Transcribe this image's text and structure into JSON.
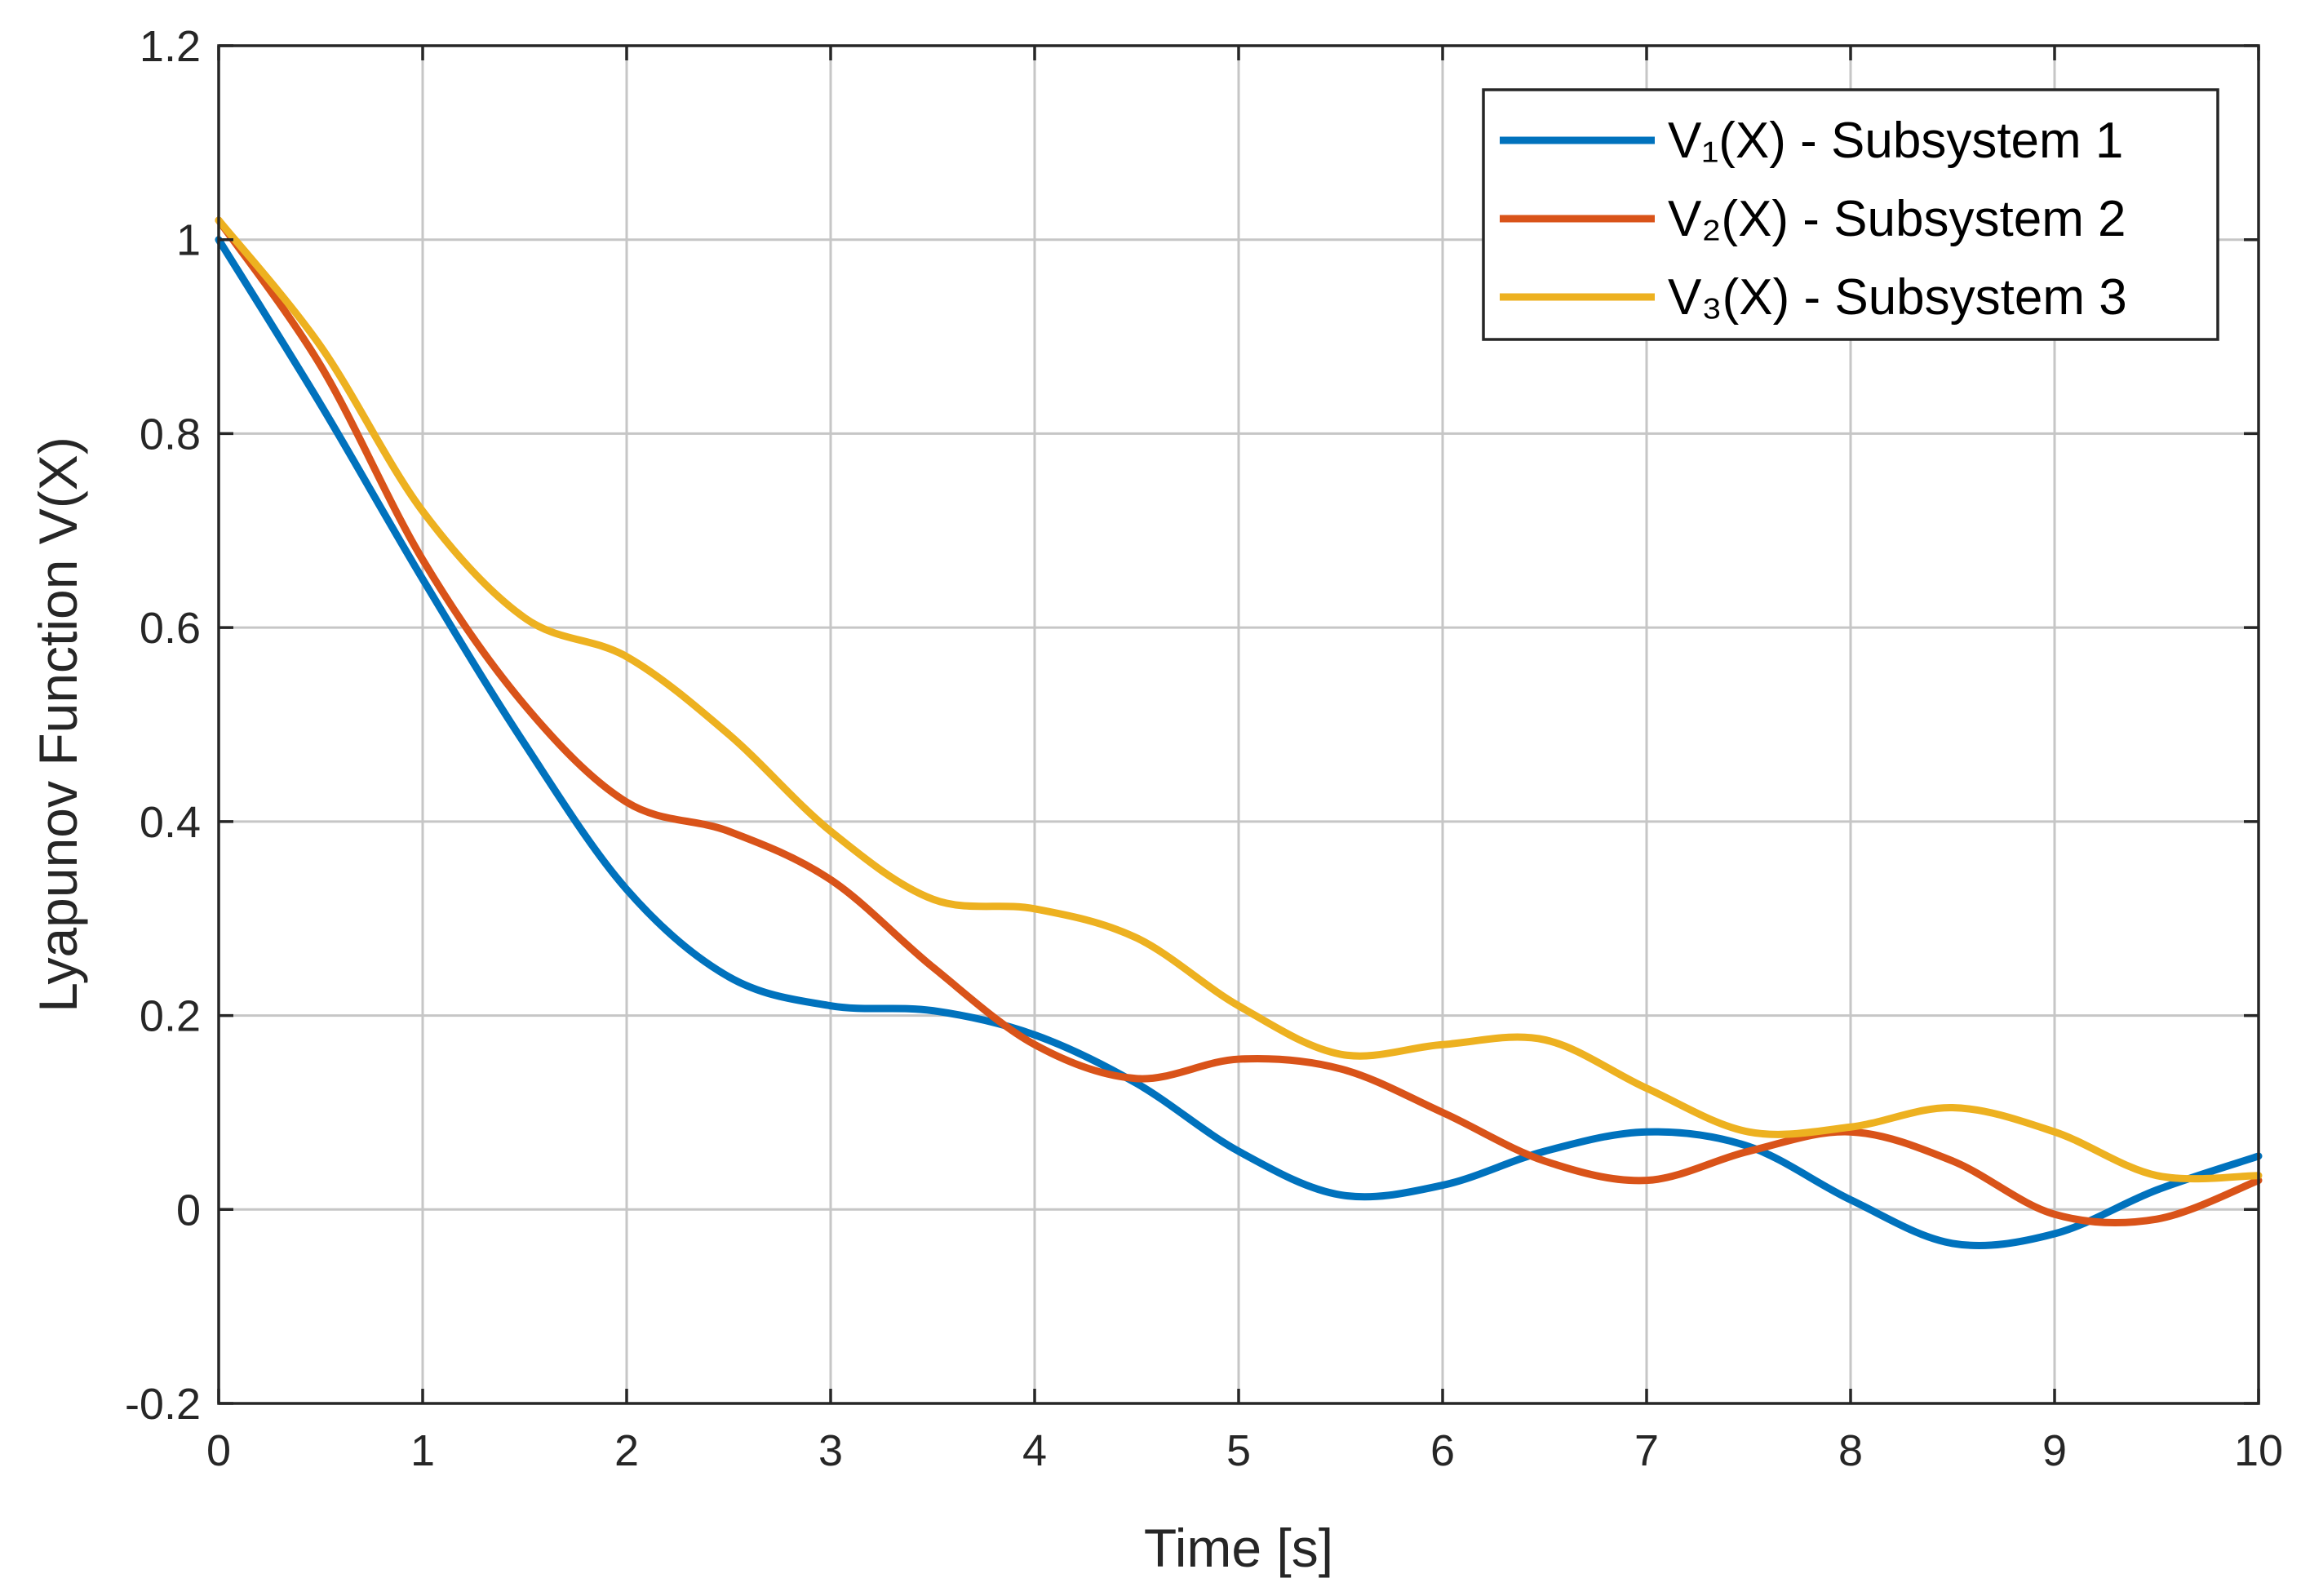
{
  "chart_data": {
    "type": "line",
    "title": "",
    "xlabel": "Time [s]",
    "ylabel": "Lyapunov Function V(X)",
    "xlim": [
      0,
      10
    ],
    "ylim": [
      -0.2,
      1.2
    ],
    "grid": true,
    "legend_position": "top-right",
    "x_ticks": [
      0,
      1,
      2,
      3,
      4,
      5,
      6,
      7,
      8,
      9,
      10
    ],
    "x_tick_labels": [
      "0",
      "1",
      "2",
      "3",
      "4",
      "5",
      "6",
      "7",
      "8",
      "9",
      "10"
    ],
    "y_ticks": [
      -0.2,
      0,
      0.2,
      0.4,
      0.6,
      0.8,
      1,
      1.2
    ],
    "y_tick_labels": [
      "-0.2",
      "0",
      "0.2",
      "0.4",
      "0.6",
      "0.8",
      "1",
      "1.2"
    ],
    "series": [
      {
        "name": "V₁(X) - Subsystem 1",
        "color": "#0072BD",
        "x": [
          0,
          0.5,
          1,
          1.5,
          2,
          2.5,
          3,
          3.5,
          4,
          4.5,
          5,
          5.5,
          6,
          6.5,
          7,
          7.5,
          8,
          8.5,
          9,
          9.5,
          10
        ],
        "y": [
          1.0,
          0.83,
          0.65,
          0.48,
          0.33,
          0.24,
          0.21,
          0.205,
          0.18,
          0.13,
          0.06,
          0.015,
          0.025,
          0.06,
          0.08,
          0.065,
          0.01,
          -0.035,
          -0.025,
          0.02,
          0.055
        ]
      },
      {
        "name": "V₂(X) - Subsystem 2",
        "color": "#D95319",
        "x": [
          0,
          0.5,
          1,
          1.5,
          2,
          2.5,
          3,
          3.5,
          4,
          4.5,
          5,
          5.5,
          6,
          6.5,
          7,
          7.5,
          8,
          8.5,
          9,
          9.5,
          10
        ],
        "y": [
          1.02,
          0.87,
          0.67,
          0.52,
          0.42,
          0.39,
          0.34,
          0.25,
          0.17,
          0.135,
          0.155,
          0.145,
          0.1,
          0.05,
          0.03,
          0.06,
          0.08,
          0.05,
          -0.005,
          -0.01,
          0.03
        ]
      },
      {
        "name": "V₃(X) - Subsystem 3",
        "color": "#EDB120",
        "x": [
          0,
          0.5,
          1,
          1.5,
          2,
          2.5,
          3,
          3.5,
          4,
          4.5,
          5,
          5.5,
          6,
          6.5,
          7,
          7.5,
          8,
          8.5,
          9,
          9.5,
          10
        ],
        "y": [
          1.02,
          0.89,
          0.72,
          0.61,
          0.57,
          0.49,
          0.39,
          0.32,
          0.31,
          0.28,
          0.21,
          0.16,
          0.17,
          0.175,
          0.125,
          0.08,
          0.085,
          0.105,
          0.08,
          0.035,
          0.035
        ]
      }
    ]
  }
}
